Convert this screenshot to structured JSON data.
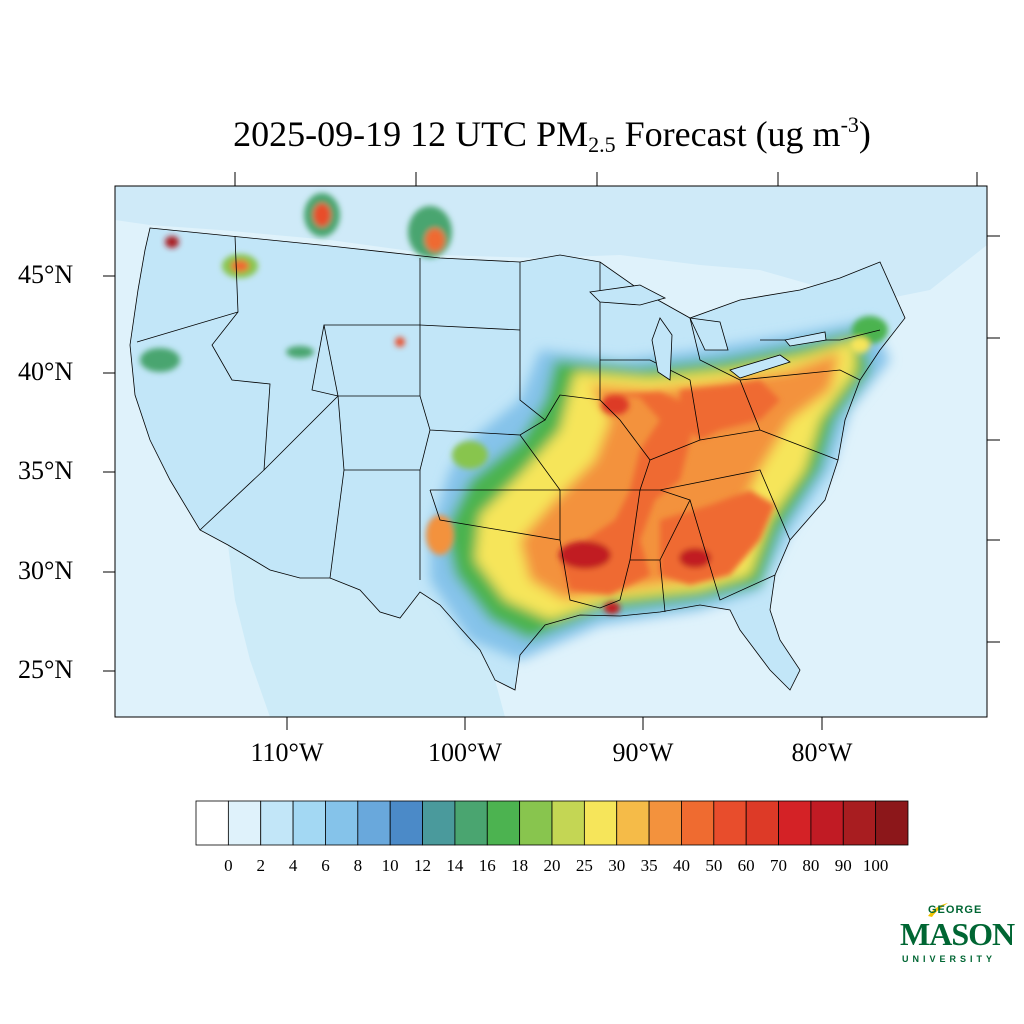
{
  "title": {
    "prefix": "2025-09-19 12 UTC PM",
    "subscript": "2.5",
    "middle": " Forecast (ug m",
    "superscript": "-3",
    "suffix": ")"
  },
  "map": {
    "lat_labels": [
      "45°N",
      "40°N",
      "35°N",
      "30°N",
      "25°N"
    ],
    "lon_labels": [
      "110°W",
      "100°W",
      "90°W",
      "80°W"
    ],
    "ocean_color": "#dff2fb",
    "land_base_color": "#c2e6f8",
    "hotspots": [
      {
        "region": "Mississippi Valley / Midwest",
        "level": "40-70"
      },
      {
        "region": "Lower Mississippi / Gulf South",
        "level": "50-90"
      },
      {
        "region": "Ohio Valley / Mid-Atlantic",
        "level": "25-50"
      },
      {
        "region": "Northern Rockies wildfire plumes",
        "level": "30-100"
      },
      {
        "region": "Pacific Northwest",
        "level": "18-100"
      }
    ]
  },
  "colorbar": {
    "colors": [
      "#ffffff",
      "#dff2fb",
      "#c2e6f8",
      "#a3d8f3",
      "#85c3ea",
      "#69a8dc",
      "#4b8ac8",
      "#4a9a9c",
      "#4aa570",
      "#4cb350",
      "#88c54e",
      "#c4d654",
      "#f6e55a",
      "#f5bb48",
      "#f3923d",
      "#ef6b30",
      "#e84d2c",
      "#dd3a27",
      "#d42226",
      "#c11b24",
      "#a81d20",
      "#8c171a"
    ],
    "labels": [
      "0",
      "2",
      "4",
      "6",
      "8",
      "10",
      "12",
      "14",
      "16",
      "18",
      "20",
      "25",
      "30",
      "35",
      "40",
      "50",
      "60",
      "70",
      "80",
      "90",
      "100"
    ]
  },
  "logo": {
    "line1": "GEORGE",
    "line2": "MASON",
    "line3": "UNIVERSITY",
    "color": "#006633",
    "accent": "#f2c300"
  }
}
